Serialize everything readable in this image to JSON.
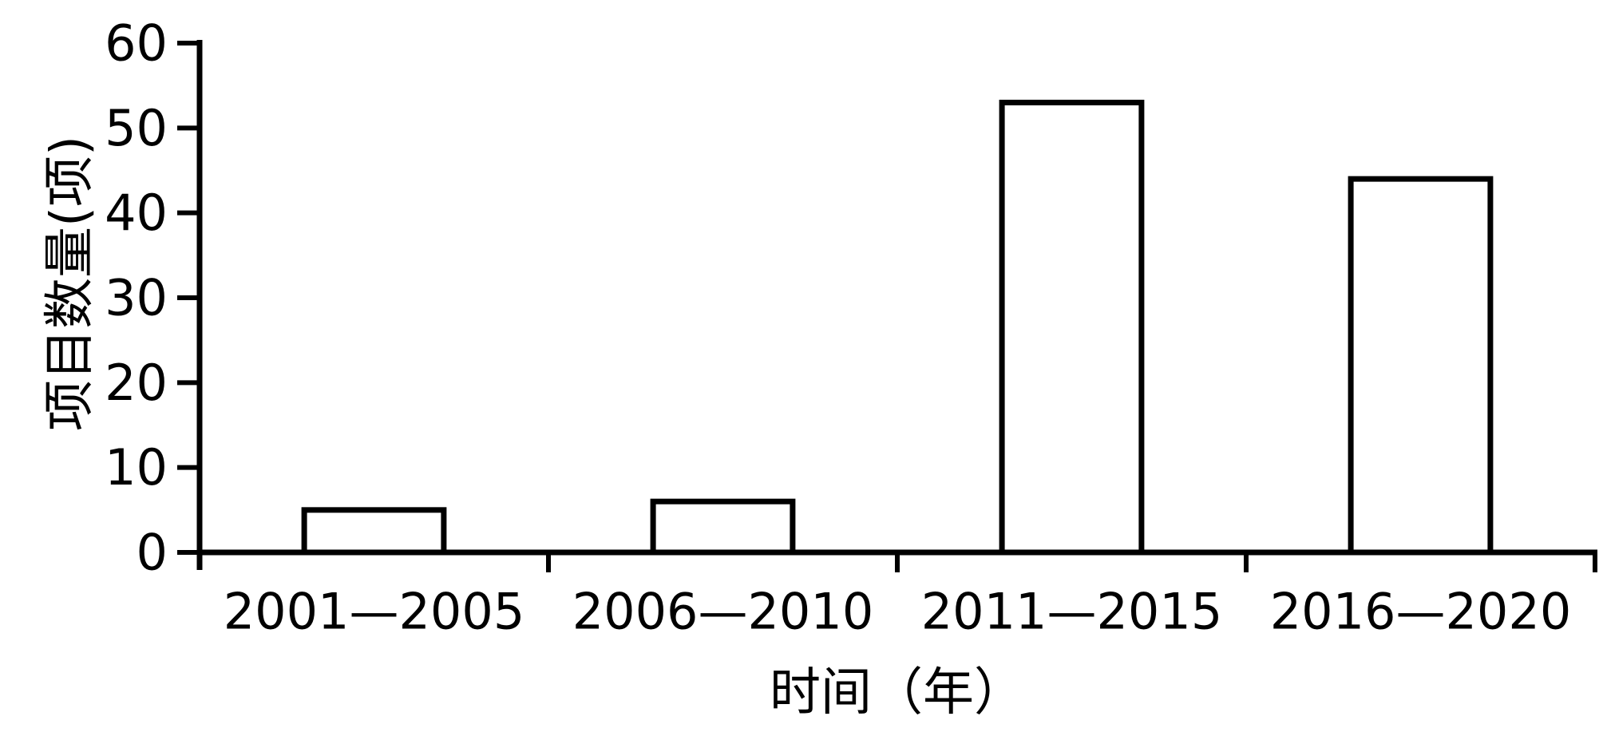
{
  "chart_data": {
    "type": "bar",
    "categories": [
      "2001—2005",
      "2006—2010",
      "2011—2015",
      "2016—2020"
    ],
    "values": [
      5,
      6,
      53,
      44
    ],
    "title": "",
    "xlabel": "时间（年）",
    "ylabel": "项目数量(项)",
    "ylim": [
      0,
      60
    ],
    "yticks": [
      0,
      10,
      20,
      30,
      40,
      50,
      60
    ],
    "grid": false,
    "legend_position": "none",
    "bar_fill": "#ffffff",
    "bar_stroke": "#000000",
    "axis_color": "#000000",
    "background": "#ffffff",
    "bar_width_fraction": 0.4
  }
}
